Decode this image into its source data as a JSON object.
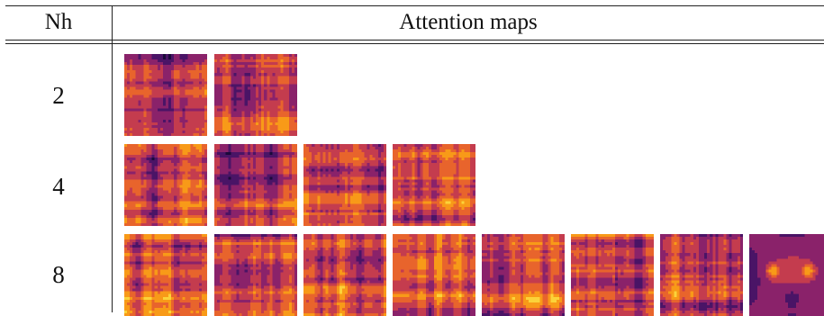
{
  "table": {
    "header": {
      "col_nh": "Nh",
      "col_maps": "Attention maps"
    },
    "rows": [
      {
        "nh": "2",
        "maps": 2
      },
      {
        "nh": "4",
        "maps": 4
      },
      {
        "nh": "8",
        "maps": 8
      }
    ]
  },
  "colormap": [
    "#1a0a3a",
    "#4a1466",
    "#8a226a",
    "#c43c4e",
    "#e8642c",
    "#f89a18",
    "#fbd33a",
    "#fcfea4"
  ]
}
